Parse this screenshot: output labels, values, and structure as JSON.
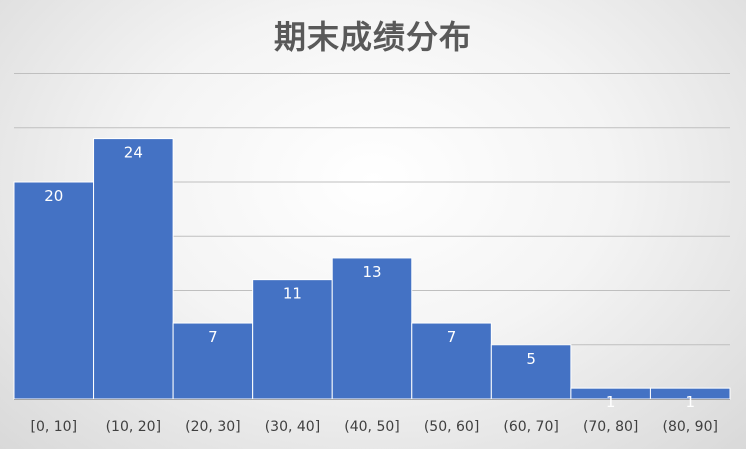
{
  "chart_data": {
    "type": "bar",
    "title": "期末成绩分布",
    "xlabel": "",
    "ylabel": "",
    "categories": [
      "[0, 10]",
      "(10, 20]",
      "(20, 30]",
      "(30, 40]",
      "(40, 50]",
      "(50, 60]",
      "(60, 70]",
      "(70, 80]",
      "(80, 90]"
    ],
    "values": [
      20,
      24,
      7,
      11,
      13,
      7,
      5,
      1,
      1
    ],
    "ylim": [
      0,
      30
    ],
    "y_gridlines": [
      5,
      10,
      15,
      20,
      25,
      30
    ],
    "grid": true,
    "data_labels": true,
    "legend": "none",
    "colors": {
      "bar": "#4472C4",
      "bar_border": "#FFFFFF",
      "gridline": "#BFBFBF",
      "axis": "#A6A6A6",
      "title": "#595959",
      "tick_label": "#404040",
      "data_label": "#FFFFFF"
    }
  }
}
